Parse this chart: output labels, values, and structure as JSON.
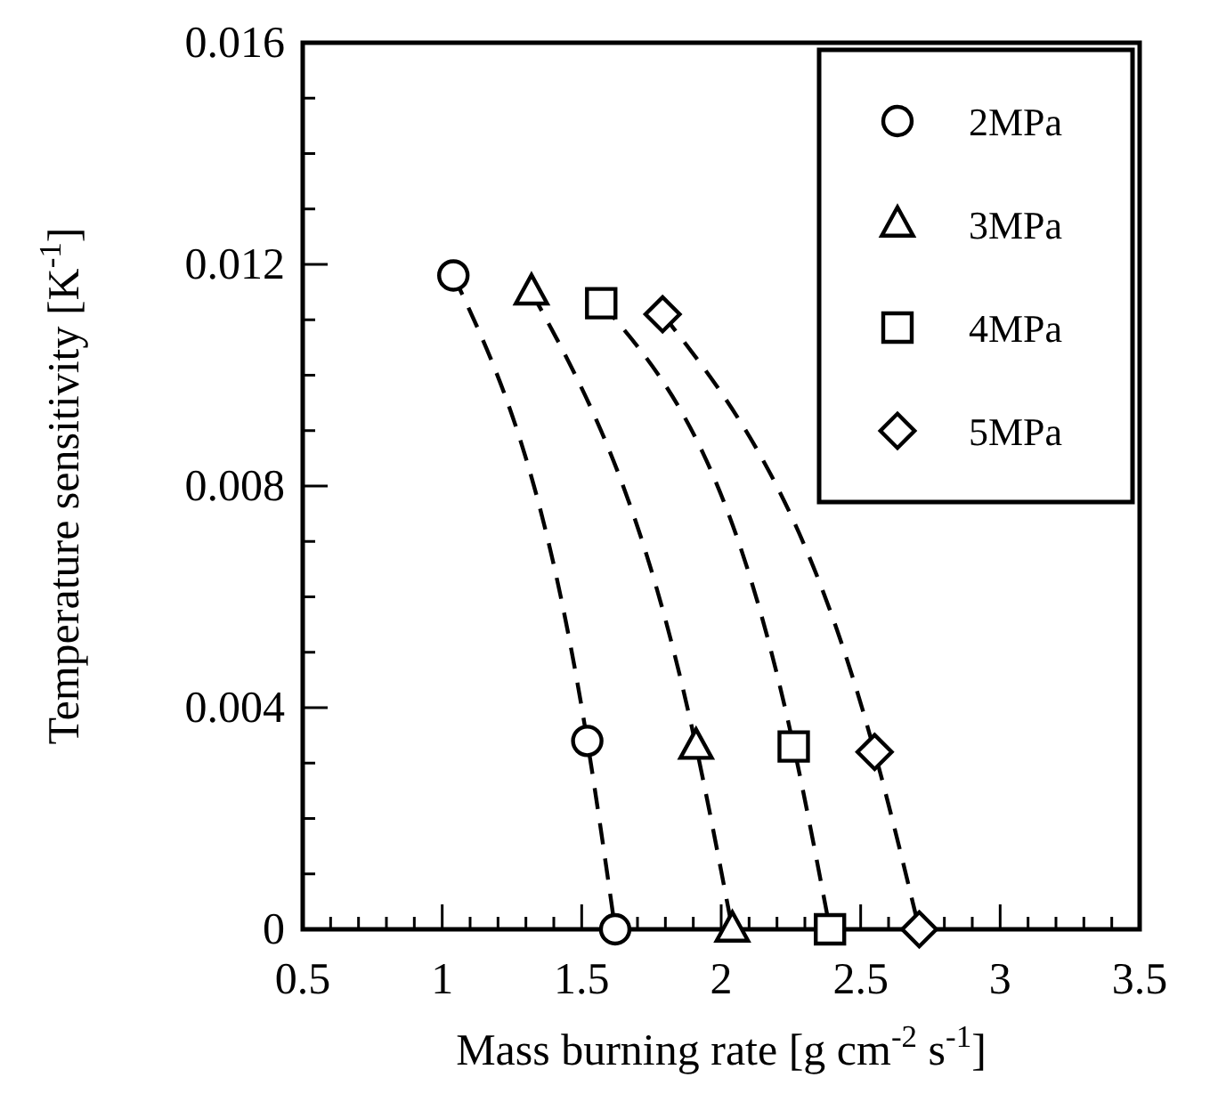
{
  "chart_data": {
    "type": "line",
    "xlabel": "Mass burning rate [g cm$^{-2}$ s$^{-1}$]",
    "ylabel": "Temperature sensitivity [K$^{-1}$]",
    "xlim": [
      0.5,
      3.5
    ],
    "ylim": [
      0,
      0.016
    ],
    "xticks": [
      0.5,
      {
        "value": 0.6,
        "label": null
      },
      {
        "value": 0.7,
        "label": null
      },
      {
        "value": 0.8,
        "label": null
      },
      {
        "value": 0.9,
        "label": null
      },
      1,
      {
        "value": 1.1,
        "label": null
      },
      {
        "value": 1.2,
        "label": null
      },
      {
        "value": 1.3,
        "label": null
      },
      {
        "value": 1.4,
        "label": null
      },
      1.5,
      {
        "value": 1.6,
        "label": null
      },
      {
        "value": 1.7,
        "label": null
      },
      {
        "value": 1.8,
        "label": null
      },
      {
        "value": 1.9,
        "label": null
      },
      2,
      {
        "value": 2.1,
        "label": null
      },
      {
        "value": 2.2,
        "label": null
      },
      {
        "value": 2.3,
        "label": null
      },
      {
        "value": 2.4,
        "label": null
      },
      2.5,
      {
        "value": 2.6,
        "label": null
      },
      {
        "value": 2.7,
        "label": null
      },
      {
        "value": 2.8,
        "label": null
      },
      {
        "value": 2.9,
        "label": null
      },
      3,
      {
        "value": 3.1,
        "label": null
      },
      {
        "value": 3.2,
        "label": null
      },
      {
        "value": 3.3,
        "label": null
      },
      {
        "value": 3.4,
        "label": null
      },
      3.5
    ],
    "yticks": [
      0,
      {
        "value": 0.001,
        "label": null
      },
      {
        "value": 0.002,
        "label": null
      },
      {
        "value": 0.003,
        "label": null
      },
      0.004,
      {
        "value": 0.005,
        "label": null
      },
      {
        "value": 0.006,
        "label": null
      },
      {
        "value": 0.007,
        "label": null
      },
      0.008,
      {
        "value": 0.009,
        "label": null
      },
      {
        "value": 0.01,
        "label": null
      },
      {
        "value": 0.011,
        "label": null
      },
      0.012,
      {
        "value": 0.013,
        "label": null
      },
      {
        "value": 0.014,
        "label": null
      },
      {
        "value": 0.015,
        "label": null
      },
      0.016
    ],
    "legend": "top right",
    "line_style": "dashed",
    "grid": false,
    "series": [
      {
        "name": "2MPa",
        "color": "#000000",
        "marker": "circle",
        "x": [
          1.04,
          1.52,
          1.62
        ],
        "values": [
          0.0118,
          0.0034,
          0
        ]
      },
      {
        "name": "3MPa",
        "color": "#000000",
        "marker": "triangle",
        "x": [
          1.32,
          1.91,
          2.04
        ],
        "values": [
          0.0115,
          0.0033,
          0
        ]
      },
      {
        "name": "4MPa",
        "color": "#000000",
        "marker": "square",
        "x": [
          1.57,
          2.26,
          2.39
        ],
        "values": [
          0.0113,
          0.0033,
          0
        ]
      },
      {
        "name": "5MPa",
        "color": "#000000",
        "marker": "diamond",
        "x": [
          1.79,
          2.55,
          2.71
        ],
        "values": [
          0.0111,
          0.0032,
          0
        ]
      }
    ]
  }
}
